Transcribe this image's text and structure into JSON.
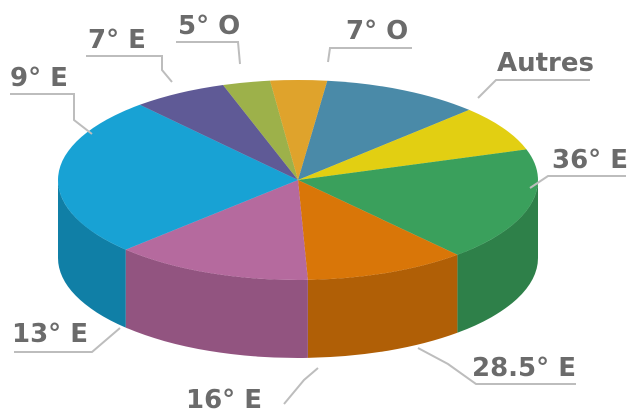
{
  "chart_data": {
    "type": "pie",
    "style": "3d",
    "title": "",
    "slices": [
      {
        "label": "7° O",
        "value": 10.7,
        "color": "#4a8aa8",
        "side": "#3a6f88"
      },
      {
        "label": "Autres",
        "value": 7.4,
        "color": "#e2cf12",
        "side": "#b8a80e"
      },
      {
        "label": "36° E",
        "value": 18.4,
        "color": "#3aa05c",
        "side": "#2e8049"
      },
      {
        "label": "28.5° E",
        "value": 10.9,
        "color": "#d97608",
        "side": "#b05f06"
      },
      {
        "label": "16° E",
        "value": 13.4,
        "color": "#b56a9e",
        "side": "#925480"
      },
      {
        "label": "13° E",
        "value": 25.8,
        "color": "#18a2d4",
        "side": "#107fa6"
      },
      {
        "label": "9° E",
        "value": 6.4,
        "color": "#5f5a96",
        "side": "#4b4778"
      },
      {
        "label": "7° E",
        "value": 3.2,
        "color": "#9db14a",
        "side": "#7e8e3a"
      },
      {
        "label": "5° O",
        "value": 3.8,
        "color": "#dfa32c",
        "side": "#b38223"
      }
    ]
  }
}
